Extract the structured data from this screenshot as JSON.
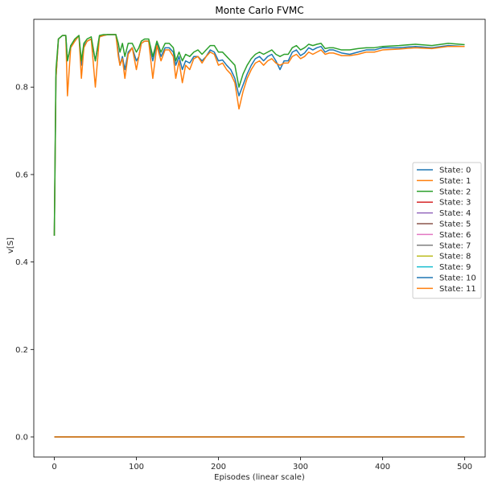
{
  "chart_data": {
    "type": "line",
    "title": "Monte Carlo FVMC",
    "xlabel": "Episodes (linear scale)",
    "ylabel": "v[S]",
    "xlim": [
      -25,
      525
    ],
    "ylim": [
      -0.046,
      0.955
    ],
    "xticks": [
      0,
      100,
      200,
      300,
      400,
      500
    ],
    "yticks": [
      0.0,
      0.2,
      0.4,
      0.6,
      0.8
    ],
    "grid": false,
    "legend_position": "center-right",
    "series": [
      {
        "name": "State: 0",
        "color": "#1f77b4",
        "x": [
          0,
          2,
          5,
          10,
          14,
          16,
          20,
          25,
          30,
          33,
          36,
          40,
          45,
          50,
          55,
          60,
          65,
          72,
          75,
          78,
          80,
          83,
          86,
          90,
          95,
          100,
          103,
          106,
          110,
          115,
          120,
          125,
          130,
          135,
          140,
          145,
          148,
          152,
          156,
          160,
          165,
          170,
          175,
          180,
          185,
          190,
          195,
          200,
          205,
          210,
          215,
          220,
          225,
          230,
          235,
          240,
          245,
          250,
          255,
          260,
          265,
          270,
          275,
          280,
          285,
          290,
          295,
          300,
          305,
          310,
          315,
          320,
          325,
          330,
          335,
          340,
          350,
          360,
          370,
          380,
          390,
          400,
          420,
          440,
          460,
          480,
          500
        ],
        "y": [
          0.46,
          0.82,
          0.91,
          0.918,
          0.918,
          0.86,
          0.895,
          0.905,
          0.918,
          0.85,
          0.895,
          0.905,
          0.91,
          0.86,
          0.915,
          0.918,
          0.92,
          0.92,
          0.92,
          0.88,
          0.85,
          0.87,
          0.84,
          0.88,
          0.89,
          0.86,
          0.87,
          0.9,
          0.905,
          0.905,
          0.86,
          0.9,
          0.87,
          0.89,
          0.89,
          0.88,
          0.85,
          0.87,
          0.84,
          0.86,
          0.855,
          0.87,
          0.87,
          0.86,
          0.87,
          0.885,
          0.88,
          0.86,
          0.862,
          0.85,
          0.84,
          0.82,
          0.78,
          0.805,
          0.83,
          0.85,
          0.865,
          0.87,
          0.86,
          0.87,
          0.875,
          0.86,
          0.84,
          0.86,
          0.86,
          0.88,
          0.885,
          0.872,
          0.878,
          0.89,
          0.885,
          0.89,
          0.893,
          0.88,
          0.885,
          0.885,
          0.878,
          0.875,
          0.88,
          0.885,
          0.885,
          0.89,
          0.89,
          0.893,
          0.89,
          0.895,
          0.893
        ]
      },
      {
        "name": "State: 1",
        "color": "#ff7f0e",
        "x": [
          0,
          2,
          5,
          10,
          14,
          16,
          20,
          25,
          30,
          33,
          36,
          40,
          45,
          50,
          55,
          60,
          65,
          72,
          75,
          78,
          80,
          83,
          86,
          90,
          95,
          100,
          103,
          106,
          110,
          115,
          120,
          125,
          130,
          135,
          140,
          145,
          148,
          152,
          156,
          160,
          165,
          170,
          175,
          180,
          185,
          190,
          195,
          200,
          205,
          210,
          215,
          220,
          225,
          230,
          235,
          240,
          245,
          250,
          255,
          260,
          265,
          270,
          275,
          280,
          285,
          290,
          295,
          300,
          305,
          310,
          315,
          320,
          325,
          330,
          335,
          340,
          350,
          360,
          370,
          380,
          390,
          400,
          420,
          440,
          460,
          480,
          500
        ],
        "y": [
          0.46,
          0.82,
          0.91,
          0.918,
          0.918,
          0.78,
          0.89,
          0.905,
          0.918,
          0.82,
          0.89,
          0.905,
          0.91,
          0.8,
          0.915,
          0.918,
          0.92,
          0.92,
          0.92,
          0.87,
          0.85,
          0.865,
          0.82,
          0.875,
          0.89,
          0.84,
          0.87,
          0.9,
          0.905,
          0.905,
          0.82,
          0.895,
          0.86,
          0.885,
          0.885,
          0.87,
          0.82,
          0.86,
          0.81,
          0.85,
          0.84,
          0.865,
          0.87,
          0.855,
          0.87,
          0.88,
          0.875,
          0.85,
          0.855,
          0.84,
          0.83,
          0.81,
          0.75,
          0.79,
          0.82,
          0.84,
          0.855,
          0.86,
          0.85,
          0.86,
          0.865,
          0.855,
          0.85,
          0.855,
          0.855,
          0.87,
          0.875,
          0.865,
          0.87,
          0.88,
          0.875,
          0.88,
          0.885,
          0.875,
          0.878,
          0.878,
          0.872,
          0.872,
          0.875,
          0.88,
          0.88,
          0.885,
          0.887,
          0.89,
          0.888,
          0.893,
          0.893
        ]
      },
      {
        "name": "State: 2",
        "color": "#2ca02c",
        "x": [
          0,
          2,
          5,
          10,
          14,
          16,
          20,
          25,
          30,
          33,
          36,
          40,
          45,
          50,
          55,
          60,
          65,
          72,
          75,
          78,
          80,
          83,
          86,
          90,
          95,
          100,
          103,
          106,
          110,
          115,
          120,
          125,
          130,
          135,
          140,
          145,
          148,
          152,
          156,
          160,
          165,
          170,
          175,
          180,
          185,
          190,
          195,
          200,
          205,
          210,
          215,
          220,
          225,
          230,
          235,
          240,
          245,
          250,
          255,
          260,
          265,
          270,
          275,
          280,
          285,
          290,
          295,
          300,
          305,
          310,
          315,
          320,
          325,
          330,
          335,
          340,
          350,
          360,
          370,
          380,
          390,
          400,
          420,
          440,
          460,
          480,
          500
        ],
        "y": [
          0.46,
          0.84,
          0.91,
          0.918,
          0.918,
          0.86,
          0.895,
          0.91,
          0.918,
          0.86,
          0.9,
          0.91,
          0.915,
          0.86,
          0.918,
          0.92,
          0.92,
          0.92,
          0.92,
          0.9,
          0.88,
          0.9,
          0.87,
          0.9,
          0.9,
          0.88,
          0.89,
          0.905,
          0.91,
          0.91,
          0.87,
          0.905,
          0.88,
          0.9,
          0.9,
          0.89,
          0.86,
          0.88,
          0.86,
          0.875,
          0.87,
          0.88,
          0.885,
          0.875,
          0.885,
          0.895,
          0.895,
          0.88,
          0.88,
          0.87,
          0.86,
          0.85,
          0.8,
          0.83,
          0.85,
          0.865,
          0.875,
          0.88,
          0.875,
          0.88,
          0.885,
          0.875,
          0.87,
          0.875,
          0.875,
          0.89,
          0.895,
          0.885,
          0.89,
          0.898,
          0.895,
          0.898,
          0.9,
          0.888,
          0.89,
          0.89,
          0.885,
          0.885,
          0.888,
          0.89,
          0.89,
          0.893,
          0.895,
          0.898,
          0.895,
          0.9,
          0.897
        ]
      },
      {
        "name": "State: 3",
        "color": "#d62728",
        "x": [
          0,
          500
        ],
        "y": [
          0.0,
          0.0
        ]
      },
      {
        "name": "State: 4",
        "color": "#9467bd",
        "x": [
          0,
          500
        ],
        "y": [
          0.0,
          0.0
        ]
      },
      {
        "name": "State: 5",
        "color": "#8c564b",
        "x": [
          0,
          500
        ],
        "y": [
          0.0,
          0.0
        ]
      },
      {
        "name": "State: 6",
        "color": "#e377c2",
        "x": [
          0,
          500
        ],
        "y": [
          0.0,
          0.0
        ]
      },
      {
        "name": "State: 7",
        "color": "#7f7f7f",
        "x": [
          0,
          500
        ],
        "y": [
          0.0,
          0.0
        ]
      },
      {
        "name": "State: 8",
        "color": "#bcbd22",
        "x": [
          0,
          500
        ],
        "y": [
          0.0,
          0.0
        ]
      },
      {
        "name": "State: 9",
        "color": "#17becf",
        "x": [
          0,
          500
        ],
        "y": [
          0.0,
          0.0
        ]
      },
      {
        "name": "State: 10",
        "color": "#1f77b4",
        "x": [
          0,
          500
        ],
        "y": [
          0.0,
          0.0
        ]
      },
      {
        "name": "State: 11",
        "color": "#ff7f0e",
        "x": [
          0,
          500
        ],
        "y": [
          0.0,
          0.0
        ]
      }
    ]
  }
}
